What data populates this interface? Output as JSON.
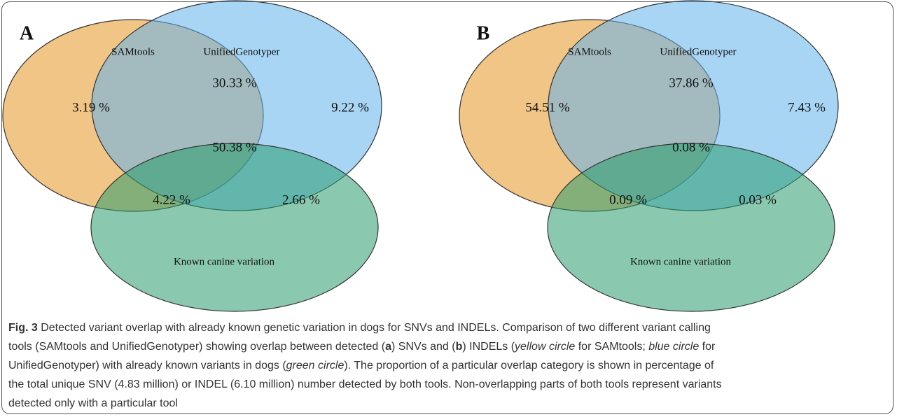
{
  "panels": [
    {
      "label": "A",
      "sets": [
        "SAMtools",
        "UnifiedGenotyper",
        "Known canine variation"
      ],
      "regions": [
        "3.19 %",
        "30.33 %",
        "9.22 %",
        "50.38 %",
        "4.22 %",
        "2.66 %"
      ]
    },
    {
      "label": "B",
      "sets": [
        "SAMtools",
        "UnifiedGenotyper",
        "Known canine variation"
      ],
      "regions": [
        "54.51 %",
        "37.86 %",
        "7.43 %",
        "0.08 %",
        "0.09 %",
        "0.03 %"
      ]
    }
  ],
  "caption": {
    "lines": [
      [
        {
          "text": "Fig. 3",
          "style": "bold"
        },
        {
          "text": " Detected variant overlap with already known genetic variation in dogs for SNVs and INDELs. Comparison of two different variant calling"
        }
      ],
      [
        {
          "text": "tools (SAMtools and UnifiedGenotyper) showing overlap between detected ("
        },
        {
          "text": "a",
          "style": "bold"
        },
        {
          "text": ") SNVs and ("
        },
        {
          "text": "b",
          "style": "bold"
        },
        {
          "text": ") INDELs ("
        },
        {
          "text": "yellow circle",
          "style": "italic"
        },
        {
          "text": " for SAMtools; "
        },
        {
          "text": "blue circle",
          "style": "italic"
        },
        {
          "text": " for"
        }
      ],
      [
        {
          "text": "UnifiedGenotyper) with already known variants in dogs ("
        },
        {
          "text": "green circle",
          "style": "italic"
        },
        {
          "text": "). The proportion of a particular overlap category is shown in percentage of"
        }
      ],
      [
        {
          "text": "the total unique SNV (4.83 million) or INDEL (6.10 million) number detected by both tools. Non-overlapping parts of both tools represent variants"
        }
      ],
      [
        {
          "text": "detected only with a particular tool"
        }
      ]
    ]
  }
}
